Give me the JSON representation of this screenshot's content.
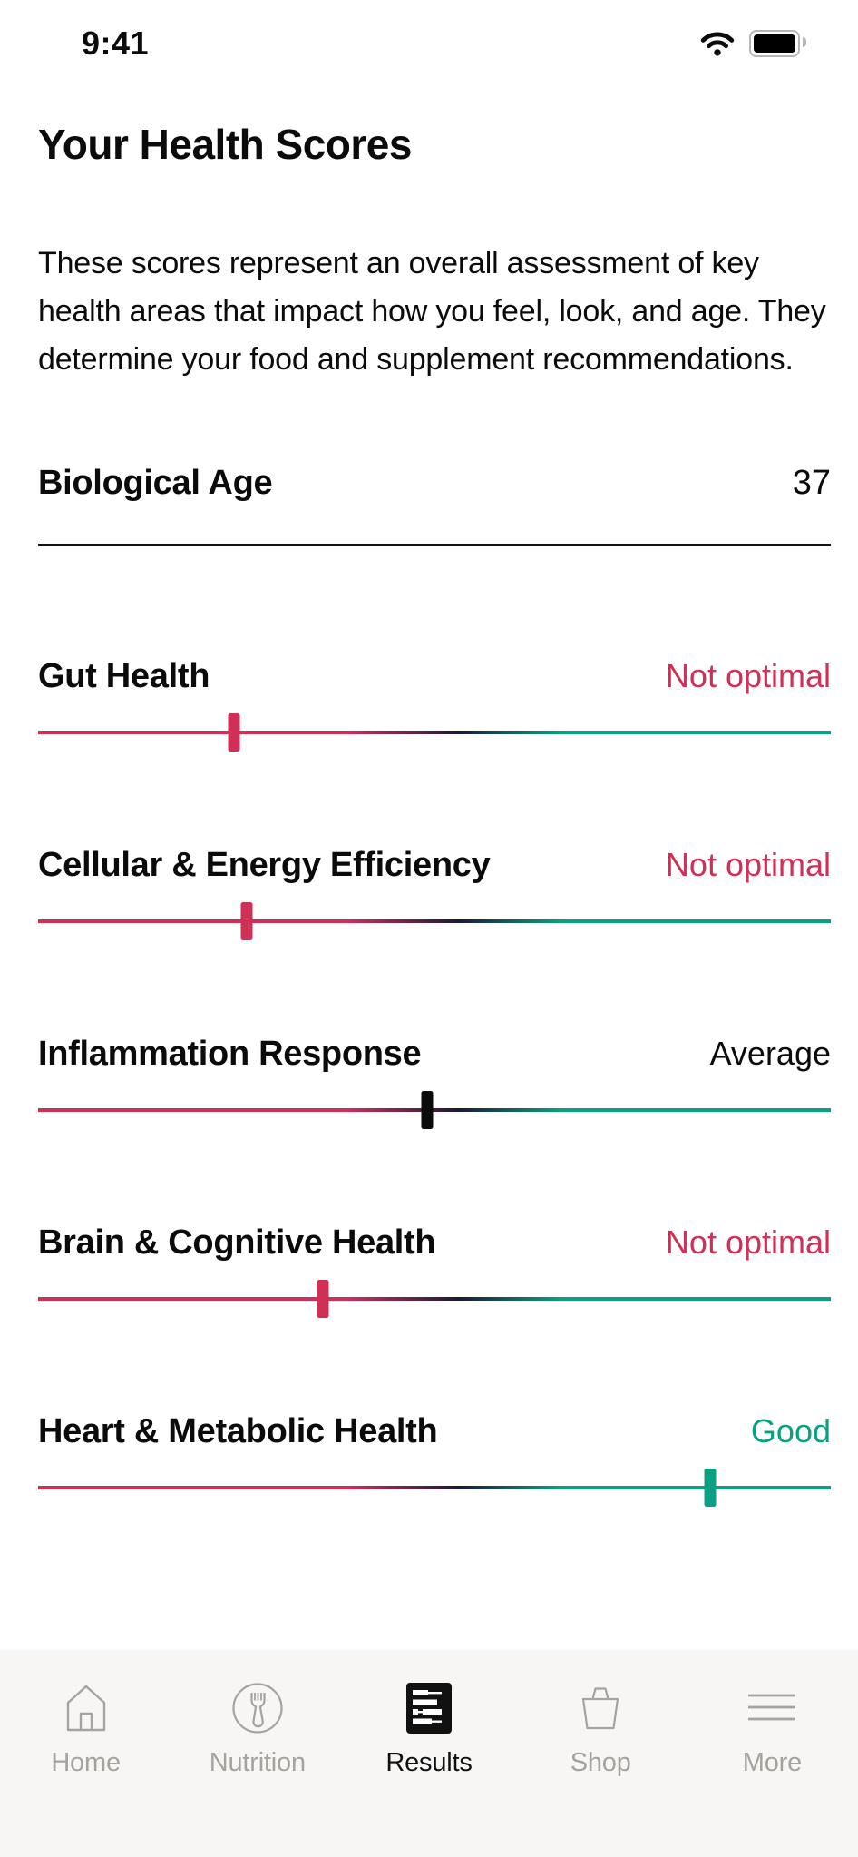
{
  "status_bar": {
    "time": "9:41",
    "icons": [
      "wifi-icon",
      "battery-icon"
    ]
  },
  "header": {
    "title": "Your Health Scores",
    "description": "These scores represent an overall assessment of key health areas that impact how you feel, look, and age. They determine your food and supplement recommendations."
  },
  "biological_age": {
    "label": "Biological Age",
    "value": "37"
  },
  "scores": [
    {
      "label": "Gut Health",
      "status": "Not optimal",
      "status_color": "#d02f56",
      "marker_pos": 24.7,
      "marker_color": "#d02f56"
    },
    {
      "label": "Cellular & Energy Efficiency",
      "status": "Not optimal",
      "status_color": "#d02f56",
      "marker_pos": 26.3,
      "marker_color": "#d02f56"
    },
    {
      "label": "Inflammation Response",
      "status": "Average",
      "status_color": "#0b0b0b",
      "marker_pos": 49.1,
      "marker_color": "#0b0b0b"
    },
    {
      "label": "Brain & Cognitive Health",
      "status": "Not optimal",
      "status_color": "#d02f56",
      "marker_pos": 35.9,
      "marker_color": "#d02f56"
    },
    {
      "label": "Heart & Metabolic Health",
      "status": "Good",
      "status_color": "#0aa183",
      "marker_pos": 84.8,
      "marker_color": "#0aa183"
    }
  ],
  "track_colors": {
    "low": "#d02f56",
    "mid": "#1a1a38",
    "high": "#0aa183"
  },
  "nav": {
    "items": [
      {
        "label": "Home",
        "icon": "home-icon",
        "active": false
      },
      {
        "label": "Nutrition",
        "icon": "nutrition-icon",
        "active": false
      },
      {
        "label": "Results",
        "icon": "results-icon",
        "active": true
      },
      {
        "label": "Shop",
        "icon": "shop-icon",
        "active": false
      },
      {
        "label": "More",
        "icon": "more-icon",
        "active": false
      }
    ]
  }
}
